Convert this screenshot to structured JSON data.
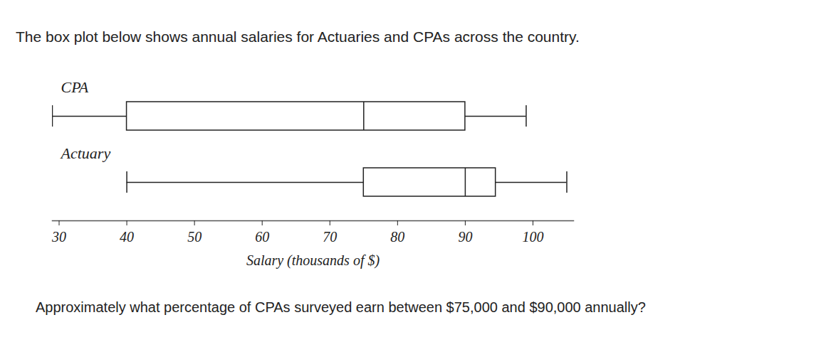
{
  "chart_data": {
    "type": "box",
    "title": "The box plot below shows annual salaries for Actuaries and CPAs across the country.",
    "caption": "Approximately what percentage of CPAs surveyed earn between $75,000 and $90,000 annually?",
    "x_label": "Salary (thousands of $)",
    "categories": [
      "CPA",
      "Actuary"
    ],
    "boxes": [
      {
        "name": "CPA",
        "min": 29,
        "q1": 40,
        "median": 75,
        "q3": 90,
        "max": 99
      },
      {
        "name": "Actuary",
        "min": 40,
        "q1": 75,
        "median": 90,
        "q3": 94.5,
        "max": 105
      }
    ],
    "color": "#222222",
    "xlim": [
      29,
      106
    ],
    "xticks": [
      30,
      40,
      50,
      60,
      70,
      80,
      90,
      100
    ],
    "grid": false
  }
}
